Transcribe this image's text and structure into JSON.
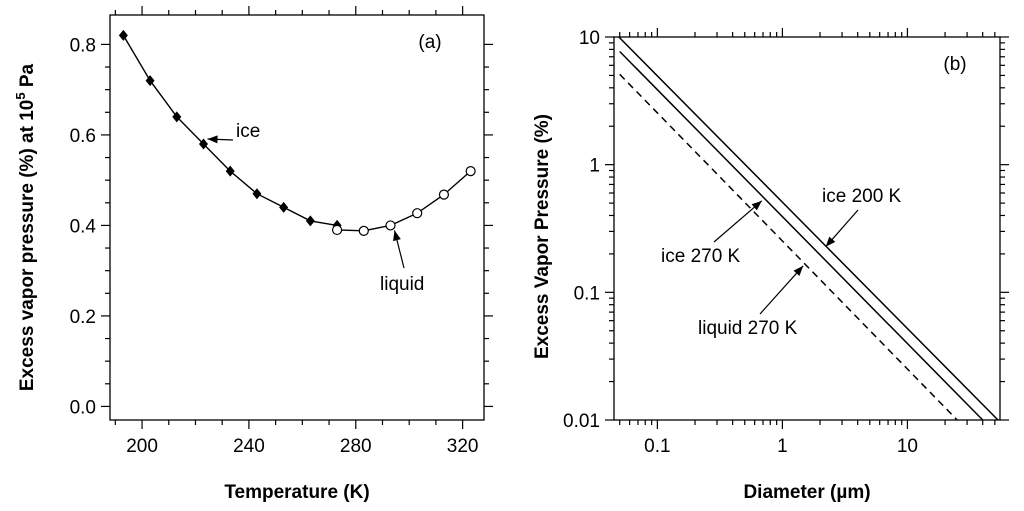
{
  "chart_data": [
    {
      "type": "line",
      "panel_label": "(a)",
      "xlabel": "Temperature (K)",
      "ylabel_main": "Excess vapor pressure (%) at 10",
      "ylabel_sup": "5",
      "ylabel_end": " Pa",
      "xlim": [
        188,
        328
      ],
      "ylim": [
        -0.03,
        0.865
      ],
      "x_ticks": [
        200,
        240,
        280,
        320
      ],
      "y_ticks": [
        0.0,
        0.2,
        0.4,
        0.6,
        0.8
      ],
      "y_tick_labels": [
        "0.0",
        "0.2",
        "0.4",
        "0.6",
        "0.8"
      ],
      "grid": false,
      "series": [
        {
          "name": "ice",
          "marker": "filled-diamond",
          "x": [
            193,
            203,
            213,
            223,
            233,
            243,
            253,
            263,
            273
          ],
          "y": [
            0.82,
            0.72,
            0.64,
            0.58,
            0.52,
            0.47,
            0.44,
            0.41,
            0.4
          ]
        },
        {
          "name": "liquid",
          "marker": "open-circle",
          "x": [
            273,
            283,
            293,
            303,
            313,
            323
          ],
          "y": [
            0.39,
            0.388,
            0.4,
            0.427,
            0.468,
            0.52
          ]
        }
      ],
      "annotations": [
        {
          "text": "ice",
          "target_x": 223,
          "target_y": 0.58
        },
        {
          "text": "liquid",
          "target_x": 293,
          "target_y": 0.4
        }
      ]
    },
    {
      "type": "line",
      "scale": "log-log",
      "panel_label": "(b)",
      "xlabel": "Diameter (µm)",
      "ylabel": "Excess Vapor Pressure (%)",
      "xlim": [
        0.045,
        55
      ],
      "ylim": [
        0.01,
        10
      ],
      "x_ticks": [
        0.1,
        1,
        10
      ],
      "x_tick_labels": [
        "0.1",
        "1",
        "10"
      ],
      "y_ticks": [
        0.01,
        0.1,
        1,
        10
      ],
      "y_tick_labels": [
        "0.01",
        "0.1",
        "1",
        "10"
      ],
      "grid": false,
      "series": [
        {
          "name": "ice 200 K",
          "style": "solid",
          "x": [
            0.0492,
            53
          ],
          "y": [
            10,
            0.01
          ]
        },
        {
          "name": "ice 270 K",
          "style": "solid",
          "x": [
            0.05,
            40
          ],
          "y": [
            7.7,
            0.01
          ]
        },
        {
          "name": "liquid 270 K",
          "style": "dashed",
          "x": [
            0.05,
            25
          ],
          "y": [
            5.1,
            0.01
          ]
        }
      ],
      "annotations": [
        {
          "text": "ice 200 K",
          "target_x": 2.1,
          "target_y": 0.24
        },
        {
          "text": "ice 270 K",
          "target_x": 0.71,
          "target_y": 0.55
        },
        {
          "text": "liquid 270 K",
          "target_x": 1.52,
          "target_y": 0.17
        }
      ]
    }
  ]
}
